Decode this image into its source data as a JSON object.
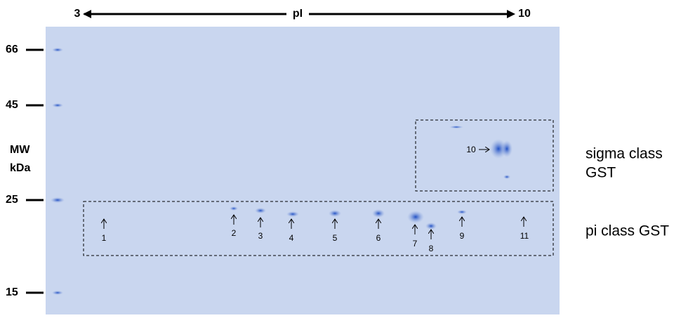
{
  "pi_axis": {
    "start": "3",
    "label": "pI",
    "end": "10"
  },
  "mw_axis": {
    "title": [
      "MW",
      "kDa"
    ],
    "markers": [
      "66",
      "45",
      "25",
      "15"
    ]
  },
  "spots": [
    "1",
    "2",
    "3",
    "4",
    "5",
    "6",
    "7",
    "8",
    "9",
    "10",
    "11"
  ],
  "annotations": {
    "sigma": [
      "sigma class",
      "GST"
    ],
    "pi": "pi class GST"
  }
}
